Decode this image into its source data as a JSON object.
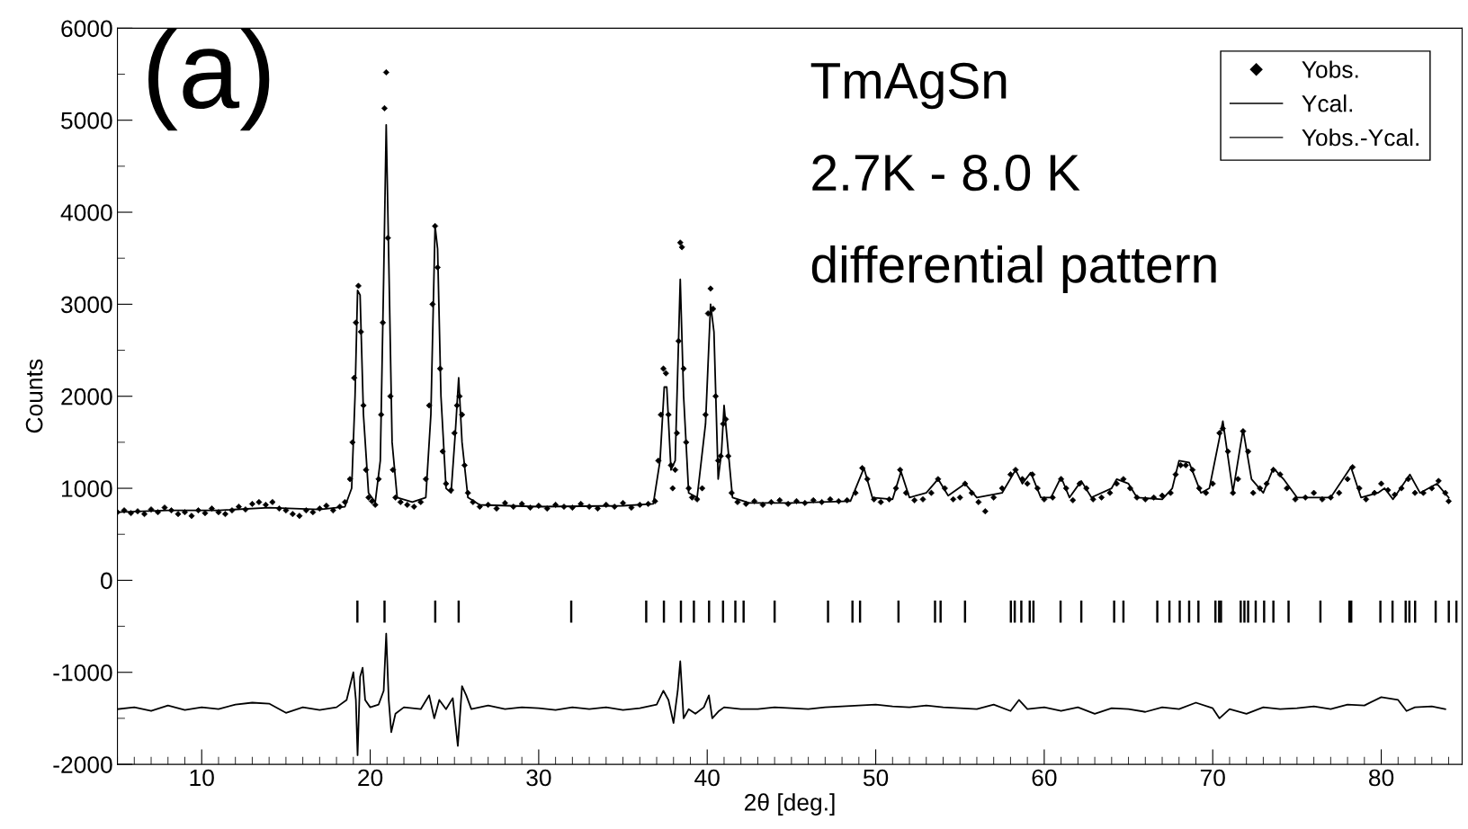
{
  "chart_data": {
    "type": "line",
    "xlabel": "2θ [deg.]",
    "ylabel": "Counts",
    "annotations": [
      "(a)",
      "TmAgSn",
      "2.7K - 8.0 K",
      "differential pattern"
    ],
    "xlim": [
      5,
      84.8
    ],
    "xticks": [
      10,
      20,
      30,
      40,
      50,
      60,
      70,
      80
    ],
    "ylim": [
      -2000,
      6000
    ],
    "yticks": [
      -2000,
      -1000,
      0,
      1000,
      2000,
      3000,
      4000,
      5000,
      6000
    ],
    "grid": false,
    "legend": "top right",
    "series": [
      {
        "name": "Yobs.",
        "type": "scatter",
        "marker": "diamond",
        "color": "#000000",
        "x": [
          5.0,
          5.4,
          5.8,
          6.2,
          6.6,
          7.0,
          7.4,
          7.8,
          8.2,
          8.6,
          9.0,
          9.4,
          9.8,
          10.2,
          10.6,
          11.0,
          11.4,
          11.8,
          12.2,
          12.6,
          13.0,
          13.4,
          13.8,
          14.2,
          14.6,
          15.0,
          15.4,
          15.8,
          16.2,
          16.6,
          17.0,
          17.4,
          17.8,
          18.2,
          18.5,
          18.8,
          18.95,
          19.05,
          19.15,
          19.3,
          19.45,
          19.6,
          19.75,
          19.9,
          20.1,
          20.3,
          20.5,
          20.65,
          20.75,
          20.85,
          20.95,
          21.05,
          21.2,
          21.35,
          21.5,
          21.8,
          22.2,
          22.6,
          23.0,
          23.3,
          23.5,
          23.7,
          23.85,
          24.0,
          24.15,
          24.3,
          24.5,
          24.8,
          25.0,
          25.15,
          25.3,
          25.45,
          25.6,
          25.8,
          26.1,
          26.5,
          27,
          27.5,
          28,
          28.5,
          29,
          29.5,
          30,
          30.5,
          31,
          31.5,
          32,
          32.5,
          33,
          33.5,
          34,
          34.5,
          35,
          35.5,
          36,
          36.5,
          36.9,
          37.1,
          37.25,
          37.4,
          37.55,
          37.7,
          37.85,
          37.95,
          38.1,
          38.2,
          38.3,
          38.4,
          38.5,
          38.6,
          38.75,
          38.9,
          39.1,
          39.4,
          39.7,
          39.9,
          40.05,
          40.2,
          40.35,
          40.5,
          40.65,
          40.8,
          40.95,
          41.1,
          41.25,
          41.45,
          41.8,
          42.3,
          42.8,
          43.3,
          43.8,
          44.3,
          44.8,
          45.3,
          45.8,
          46.3,
          46.8,
          47.3,
          47.8,
          48.3,
          48.8,
          49.2,
          49.5,
          49.9,
          50.3,
          50.8,
          51.2,
          51.45,
          51.8,
          52.3,
          52.8,
          53.3,
          53.7,
          54.1,
          54.6,
          55.0,
          55.3,
          55.7,
          56.1,
          56.5,
          57.0,
          57.5,
          58.0,
          58.3,
          58.7,
          59.0,
          59.3,
          59.6,
          60.0,
          60.5,
          61.0,
          61.3,
          61.7,
          62.1,
          62.5,
          62.9,
          63.4,
          63.9,
          64.3,
          64.7,
          65.1,
          65.5,
          66.0,
          66.5,
          67.0,
          67.5,
          67.8,
          68.1,
          68.4,
          68.8,
          69.2,
          69.6,
          70.0,
          70.4,
          70.6,
          70.9,
          71.2,
          71.5,
          71.8,
          72.1,
          72.4,
          72.8,
          73.2,
          73.6,
          74.0,
          74.4,
          74.9,
          75.5,
          76.0,
          76.5,
          77.0,
          77.5,
          78.0,
          78.3,
          78.7,
          79.1,
          79.6,
          80.0,
          80.4,
          80.8,
          81.2,
          81.6,
          82.0,
          82.5,
          83.0,
          83.4,
          83.8,
          84.0
        ],
        "values": [
          740,
          760,
          730,
          750,
          720,
          770,
          740,
          790,
          760,
          720,
          740,
          700,
          760,
          730,
          780,
          740,
          720,
          760,
          800,
          770,
          830,
          850,
          820,
          850,
          780,
          760,
          720,
          700,
          760,
          740,
          780,
          810,
          760,
          800,
          850,
          1100,
          1500,
          2200,
          2800,
          3200,
          2700,
          1900,
          1200,
          900,
          860,
          820,
          1100,
          1800,
          2800,
          5130,
          5520,
          3720,
          2000,
          1200,
          900,
          850,
          820,
          800,
          850,
          1100,
          1900,
          3000,
          3850,
          3400,
          2300,
          1400,
          1050,
          980,
          1600,
          1900,
          2000,
          1800,
          1250,
          950,
          850,
          800,
          820,
          780,
          840,
          800,
          830,
          790,
          810,
          780,
          820,
          800,
          790,
          830,
          800,
          780,
          820,
          800,
          840,
          790,
          820,
          830,
          860,
          1300,
          1800,
          2300,
          2250,
          1800,
          1250,
          1000,
          1200,
          1600,
          2600,
          3670,
          3620,
          2300,
          1500,
          1000,
          900,
          880,
          1000,
          1800,
          2900,
          3170,
          2950,
          2000,
          1300,
          1350,
          1700,
          1750,
          1350,
          950,
          850,
          830,
          860,
          820,
          850,
          870,
          830,
          860,
          840,
          870,
          850,
          880,
          860,
          870,
          950,
          1220,
          1100,
          880,
          850,
          880,
          1000,
          1200,
          950,
          870,
          880,
          950,
          1100,
          1000,
          880,
          900,
          1050,
          950,
          850,
          750,
          900,
          1000,
          1150,
          1200,
          1100,
          1050,
          1150,
          1000,
          880,
          900,
          1100,
          1000,
          870,
          1050,
          1000,
          880,
          900,
          950,
          1050,
          1100,
          1000,
          900,
          880,
          900,
          920,
          950,
          1150,
          1250,
          1250,
          1200,
          1000,
          950,
          1050,
          1600,
          1650,
          1400,
          950,
          1100,
          1620,
          1400,
          950,
          1000,
          1050,
          1200,
          1150,
          1000,
          880,
          900,
          950,
          880,
          900,
          950,
          1100,
          1230,
          1000,
          880,
          950,
          1050,
          980,
          930,
          1000,
          1100,
          950,
          950,
          1000,
          1080,
          950,
          860
        ]
      },
      {
        "name": "Ycal.",
        "line_style": "solid",
        "color": "#000000",
        "x": [
          5,
          8,
          11,
          14,
          17,
          18.5,
          18.9,
          19.1,
          19.25,
          19.4,
          19.6,
          19.9,
          20.3,
          20.6,
          20.8,
          20.95,
          21.1,
          21.3,
          21.6,
          22.5,
          23.3,
          23.6,
          23.85,
          24.0,
          24.2,
          24.5,
          24.8,
          25.05,
          25.25,
          25.45,
          25.8,
          26.5,
          30,
          35,
          36.8,
          37.2,
          37.45,
          37.6,
          37.85,
          38.1,
          38.4,
          38.6,
          38.9,
          39.4,
          39.9,
          40.2,
          40.4,
          40.65,
          40.85,
          41.0,
          41.2,
          41.5,
          42.5,
          45,
          48.5,
          49.3,
          49.8,
          51,
          51.5,
          52,
          53,
          53.7,
          54.3,
          55.3,
          56,
          57.5,
          58.3,
          58.7,
          59.2,
          59.8,
          60.4,
          61.0,
          61.5,
          62.2,
          62.8,
          64,
          64.3,
          65,
          65.5,
          67,
          67.6,
          68,
          68.6,
          69.3,
          69.8,
          70.6,
          71.2,
          71.8,
          72.3,
          73,
          73.6,
          74.2,
          75,
          77,
          78.2,
          78.8,
          79.8,
          80.2,
          80.7,
          81.7,
          82.3,
          83.3,
          84
        ],
        "values": [
          740,
          760,
          760,
          790,
          770,
          800,
          1000,
          2000,
          3150,
          3100,
          1800,
          950,
          850,
          1300,
          3300,
          4950,
          3500,
          1500,
          900,
          850,
          900,
          1800,
          3850,
          3600,
          2000,
          1000,
          950,
          1600,
          2200,
          1500,
          900,
          820,
          800,
          810,
          830,
          1300,
          2100,
          2100,
          1200,
          1300,
          3270,
          2000,
          950,
          900,
          1700,
          3000,
          2700,
          1100,
          1400,
          1900,
          1500,
          900,
          840,
          840,
          860,
          1220,
          900,
          880,
          1180,
          900,
          950,
          1100,
          920,
          1050,
          900,
          950,
          1200,
          1050,
          1170,
          900,
          900,
          1120,
          900,
          1080,
          900,
          1000,
          1100,
          1050,
          900,
          880,
          1000,
          1300,
          1280,
          950,
          1000,
          1730,
          960,
          1640,
          1100,
          950,
          1220,
          1100,
          900,
          900,
          1230,
          900,
          950,
          1000,
          880,
          1150,
          950,
          1050,
          900
        ]
      },
      {
        "name": "Yobs.-Ycal.",
        "line_style": "solid",
        "color": "#000000",
        "x": [
          5,
          6,
          7,
          8,
          9,
          10,
          11,
          12,
          13,
          14,
          15,
          16,
          17,
          18,
          18.6,
          19.0,
          19.15,
          19.25,
          19.4,
          19.55,
          19.7,
          20.0,
          20.5,
          20.8,
          20.95,
          21.1,
          21.25,
          21.5,
          22,
          23,
          23.5,
          23.8,
          24.1,
          24.5,
          24.9,
          25.2,
          25.45,
          25.7,
          26,
          27,
          28,
          29,
          30,
          31,
          32,
          33,
          34,
          35,
          36,
          37,
          37.4,
          37.7,
          38.0,
          38.25,
          38.4,
          38.6,
          38.9,
          39.3,
          39.8,
          40.1,
          40.3,
          40.7,
          41,
          42,
          43,
          44,
          45,
          46,
          47,
          48,
          49,
          50,
          51,
          52,
          53,
          54,
          55,
          56,
          57,
          58,
          58.5,
          59,
          60,
          61,
          62,
          63,
          64,
          65,
          66,
          67,
          68,
          69,
          70,
          70.4,
          71,
          72,
          73,
          74,
          75,
          76,
          77,
          78,
          79,
          80,
          81,
          81.5,
          82,
          83,
          83.8
        ],
        "values": [
          -1400,
          -1380,
          -1420,
          -1360,
          -1410,
          -1380,
          -1400,
          -1350,
          -1330,
          -1340,
          -1440,
          -1380,
          -1410,
          -1380,
          -1300,
          -1000,
          -1300,
          -1900,
          -1050,
          -950,
          -1300,
          -1380,
          -1350,
          -1200,
          -580,
          -1300,
          -1650,
          -1450,
          -1380,
          -1400,
          -1250,
          -1500,
          -1300,
          -1400,
          -1280,
          -1800,
          -1150,
          -1250,
          -1400,
          -1360,
          -1400,
          -1380,
          -1390,
          -1410,
          -1380,
          -1400,
          -1380,
          -1410,
          -1390,
          -1350,
          -1200,
          -1300,
          -1550,
          -1200,
          -880,
          -1500,
          -1400,
          -1450,
          -1380,
          -1250,
          -1500,
          -1420,
          -1380,
          -1400,
          -1400,
          -1380,
          -1390,
          -1400,
          -1380,
          -1370,
          -1360,
          -1350,
          -1370,
          -1380,
          -1360,
          -1380,
          -1390,
          -1400,
          -1350,
          -1420,
          -1300,
          -1400,
          -1380,
          -1420,
          -1380,
          -1450,
          -1390,
          -1400,
          -1430,
          -1380,
          -1400,
          -1330,
          -1390,
          -1500,
          -1400,
          -1450,
          -1380,
          -1400,
          -1390,
          -1370,
          -1400,
          -1350,
          -1360,
          -1270,
          -1300,
          -1420,
          -1380,
          -1370,
          -1400
        ]
      },
      {
        "type": "bar",
        "color": "#000000",
        "base": [
          -460,
          -460,
          -460,
          -460,
          -460,
          -460,
          -460,
          -460,
          -460,
          -460,
          -460,
          -460,
          -460,
          -460,
          -460,
          -460,
          -460,
          -460,
          -460,
          -460,
          -460,
          -460,
          -460,
          -460,
          -460,
          -460,
          -460,
          -460,
          -460,
          -460,
          -460,
          -460,
          -460,
          -460,
          -460,
          -460,
          -460,
          -460,
          -460,
          -460,
          -460,
          -460,
          -460,
          -460,
          -460,
          -460,
          -460,
          -460,
          -460,
          -460,
          -460,
          -460,
          -460,
          -460,
          -460,
          -460
        ],
        "x": [
          19.24,
          20.85,
          23.86,
          25.25,
          31.93,
          36.38,
          37.43,
          38.44,
          39.21,
          40.11,
          40.94,
          41.67,
          42.16,
          44.0,
          47.17,
          48.62,
          49.07,
          51.35,
          53.52,
          53.85,
          55.3,
          58.02,
          58.25,
          58.64,
          59.14,
          59.36,
          60.97,
          62.2,
          64.15,
          64.7,
          66.71,
          67.43,
          68.04,
          68.6,
          69.15,
          70.16,
          70.38,
          70.49,
          71.66,
          71.88,
          72.1,
          72.55,
          73.05,
          73.6,
          74.5,
          76.39,
          78.11,
          78.22,
          79.95,
          80.67,
          81.45,
          81.67,
          82.01,
          83.23,
          84.01,
          84.46
        ],
        "values": [
          240,
          240,
          240,
          240,
          240,
          240,
          240,
          240,
          240,
          240,
          240,
          240,
          240,
          240,
          240,
          240,
          240,
          240,
          240,
          240,
          240,
          240,
          240,
          240,
          240,
          240,
          240,
          240,
          240,
          240,
          240,
          240,
          240,
          240,
          240,
          240,
          240,
          240,
          240,
          240,
          240,
          240,
          240,
          240,
          240,
          240,
          240,
          240,
          240,
          240,
          240,
          240,
          240,
          240,
          240,
          240
        ]
      }
    ]
  }
}
